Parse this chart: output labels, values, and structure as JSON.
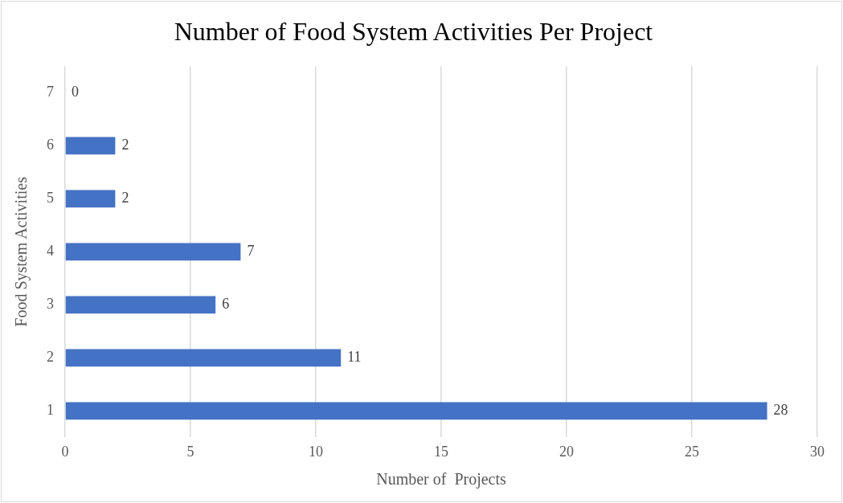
{
  "chart_data": {
    "type": "bar",
    "orientation": "horizontal",
    "title": "Number of Food System Activities Per Project",
    "xlabel": "Number of  Projects",
    "ylabel": "Food System Activities",
    "categories": [
      "7",
      "6",
      "5",
      "4",
      "3",
      "2",
      "1"
    ],
    "values": [
      0,
      2,
      2,
      7,
      6,
      11,
      28
    ],
    "color": "#4472c4",
    "xlim": [
      0,
      30
    ],
    "xticks": [
      0,
      5,
      10,
      15,
      20,
      25,
      30
    ],
    "grid": "x",
    "data_labels": true,
    "legend": false
  }
}
